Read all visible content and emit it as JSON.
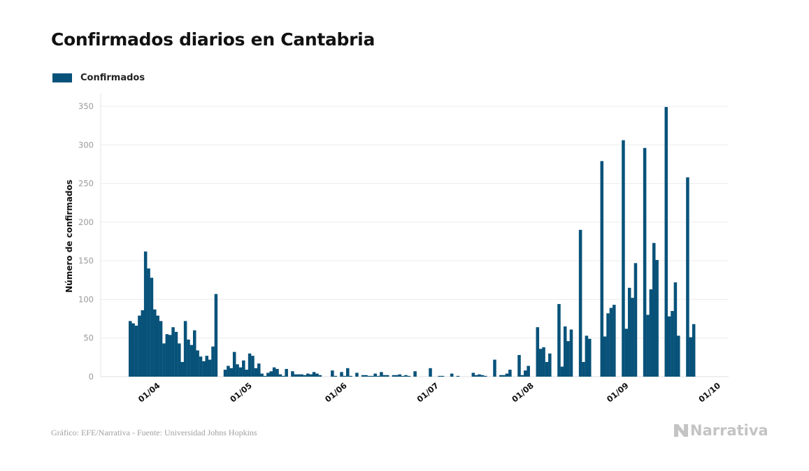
{
  "header": {
    "title": "Confirmados diarios en Cantabria"
  },
  "legend": {
    "label": "Confirmados",
    "color": "#08527a"
  },
  "footer": {
    "source": "Gráfico: EFE/Narrativa - Fuente: Universidad Johns Hopkins",
    "logo": "Narrativa"
  },
  "chart_data": {
    "type": "bar",
    "title": "Confirmados diarios en Cantabria",
    "xlabel": "",
    "ylabel": "Número de confirmados",
    "ylim": [
      0,
      350
    ],
    "yticks": [
      0,
      50,
      100,
      150,
      200,
      250,
      300,
      350
    ],
    "grid": true,
    "legend_position": "top-left",
    "start_date": "2020-03-23",
    "xtick_labels": [
      "01/04",
      "01/05",
      "01/06",
      "01/07",
      "01/08",
      "01/09",
      "01/10"
    ],
    "xtick_day_offsets": [
      9,
      39,
      70,
      100,
      131,
      162,
      192
    ],
    "series": [
      {
        "name": "Confirmados",
        "color": "#08527a",
        "values": [
          72,
          69,
          66,
          79,
          86,
          162,
          140,
          128,
          87,
          79,
          72,
          43,
          55,
          54,
          64,
          58,
          43,
          19,
          72,
          48,
          41,
          60,
          34,
          26,
          20,
          27,
          22,
          39,
          107,
          0,
          0,
          9,
          14,
          11,
          32,
          16,
          12,
          21,
          9,
          30,
          27,
          11,
          17,
          4,
          1,
          5,
          7,
          12,
          10,
          3,
          1,
          10,
          0,
          7,
          3,
          3,
          3,
          2,
          4,
          3,
          6,
          4,
          2,
          0,
          0,
          0,
          8,
          1,
          0,
          6,
          1,
          11,
          1,
          0,
          5,
          0,
          2,
          2,
          1,
          1,
          4,
          1,
          6,
          2,
          2,
          0,
          2,
          2,
          3,
          1,
          2,
          1,
          0,
          7,
          0,
          0,
          0,
          0,
          11,
          0,
          0,
          1,
          1,
          0,
          0,
          4,
          0,
          1,
          0,
          0,
          0,
          0,
          5,
          2,
          3,
          2,
          1,
          0,
          0,
          22,
          0,
          2,
          2,
          4,
          9,
          0,
          0,
          28,
          2,
          8,
          14,
          0,
          0,
          64,
          36,
          38,
          19,
          30,
          0,
          0,
          94,
          13,
          65,
          46,
          61,
          0,
          0,
          190,
          19,
          53,
          49,
          0,
          0,
          0,
          279,
          52,
          82,
          89,
          93,
          0,
          0,
          306,
          62,
          115,
          102,
          147,
          0,
          0,
          296,
          80,
          113,
          173,
          151,
          0,
          0,
          349,
          78,
          85,
          122,
          53,
          0,
          0,
          258,
          51,
          68
        ]
      }
    ]
  }
}
